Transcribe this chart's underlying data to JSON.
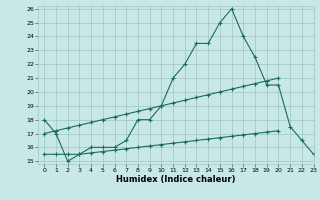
{
  "title": "",
  "xlabel": "Humidex (Indice chaleur)",
  "x": [
    0,
    1,
    2,
    3,
    4,
    5,
    6,
    7,
    8,
    9,
    10,
    11,
    12,
    13,
    14,
    15,
    16,
    17,
    18,
    19,
    20,
    21,
    22,
    23
  ],
  "line1": [
    18,
    17,
    15,
    15.5,
    16,
    16,
    16,
    16.5,
    18,
    18,
    19,
    21,
    22,
    23.5,
    23.5,
    25,
    26,
    24,
    22.5,
    20.5,
    20.5,
    17.5,
    16.5,
    15.5
  ],
  "line2": [
    17,
    17.2,
    17.4,
    17.6,
    17.8,
    18.0,
    18.2,
    18.4,
    18.6,
    18.8,
    19.0,
    19.2,
    19.4,
    19.6,
    19.8,
    20.0,
    20.2,
    20.4,
    20.6,
    20.8,
    21.0,
    null,
    null,
    null
  ],
  "line3": [
    15.5,
    15.5,
    15.5,
    15.5,
    15.6,
    15.7,
    15.8,
    15.9,
    16.0,
    16.1,
    16.2,
    16.3,
    16.4,
    16.5,
    16.6,
    16.7,
    16.8,
    16.9,
    17.0,
    17.1,
    17.2,
    null,
    null,
    null
  ],
  "color": "#1a6b5a",
  "bg_color": "#c8e8e8",
  "grid_color": "#a0c4c4",
  "ylim": [
    14.8,
    26.2
  ],
  "xlim": [
    -0.5,
    23
  ],
  "yticks": [
    15,
    16,
    17,
    18,
    19,
    20,
    21,
    22,
    23,
    24,
    25,
    26
  ],
  "xticks": [
    0,
    1,
    2,
    3,
    4,
    5,
    6,
    7,
    8,
    9,
    10,
    11,
    12,
    13,
    14,
    15,
    16,
    17,
    18,
    19,
    20,
    21,
    22,
    23
  ]
}
